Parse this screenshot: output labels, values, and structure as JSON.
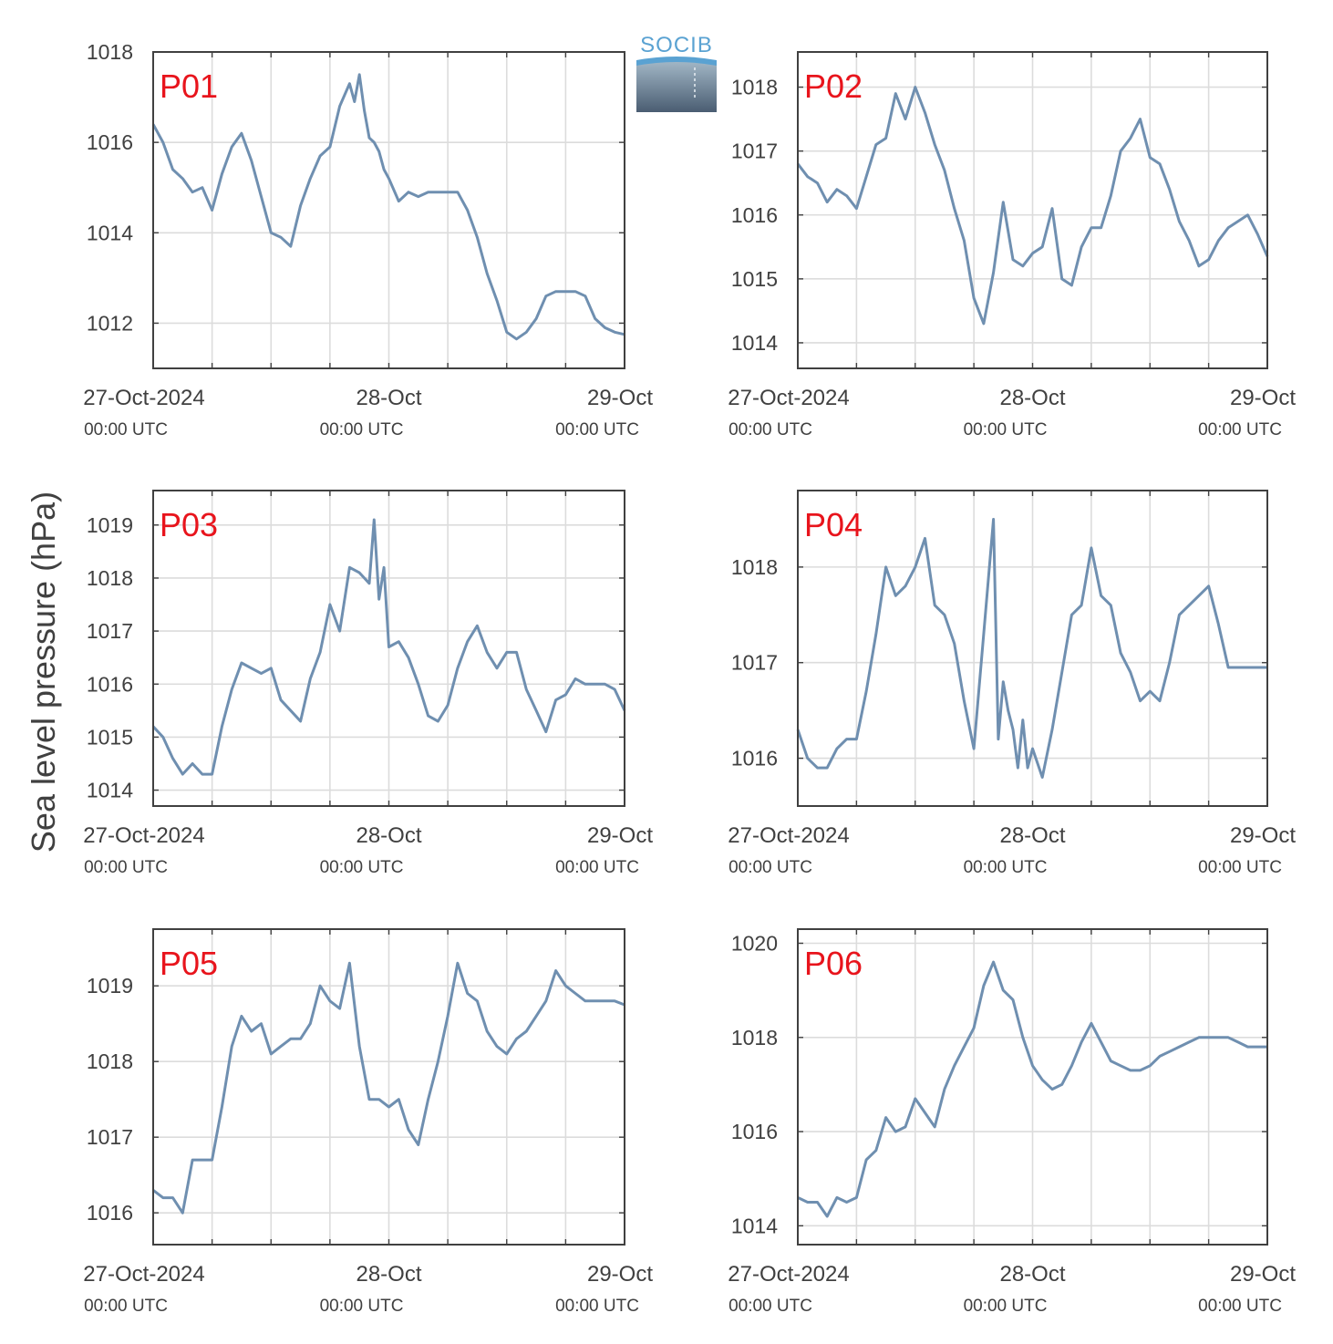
{
  "figure": {
    "ylabel": "Sea level pressure (hPa)",
    "logo_text": "SOCIB",
    "line_color": "#6f8fb0",
    "station_label_color": "#e8141c",
    "grid_color": "#dcdcdc",
    "axis_color": "#404040"
  },
  "chart_data": [
    {
      "type": "line",
      "name": "P01",
      "x_ticks": [
        0,
        24,
        48
      ],
      "x_tick_labels": [
        "27-Oct-2024",
        "28-Oct",
        "29-Oct"
      ],
      "x_tick_sublabels": [
        "00:00 UTC",
        "00:00 UTC",
        "00:00 UTC"
      ],
      "xlim": [
        0,
        48
      ],
      "ylim": [
        1011.0,
        1018.0
      ],
      "y_ticks": [
        1012,
        1014,
        1016,
        1018
      ],
      "grid": true,
      "x": [
        0,
        1,
        2,
        3,
        4,
        5,
        6,
        7,
        8,
        9,
        10,
        11,
        12,
        13,
        14,
        15,
        16,
        17,
        18,
        19,
        20,
        20.5,
        21,
        21.5,
        22,
        22.5,
        23,
        23.5,
        24,
        25,
        26,
        27,
        28,
        29,
        30,
        31,
        32,
        33,
        34,
        35,
        36,
        37,
        38,
        39,
        40,
        41,
        42,
        43,
        44,
        45,
        46,
        47,
        48
      ],
      "y": [
        1016.4,
        1016.0,
        1015.4,
        1015.2,
        1014.9,
        1015.0,
        1014.5,
        1015.3,
        1015.9,
        1016.2,
        1015.6,
        1014.8,
        1014.0,
        1013.9,
        1013.7,
        1014.6,
        1015.2,
        1015.7,
        1015.9,
        1016.8,
        1017.3,
        1016.9,
        1017.5,
        1016.7,
        1016.1,
        1016.0,
        1015.8,
        1015.4,
        1015.2,
        1014.7,
        1014.9,
        1014.8,
        1014.9,
        1014.9,
        1014.9,
        1014.9,
        1014.5,
        1013.9,
        1013.1,
        1012.5,
        1011.8,
        1011.65,
        1011.8,
        1012.1,
        1012.6,
        1012.7,
        1012.7,
        1012.7,
        1012.6,
        1012.1,
        1011.9,
        1011.8,
        1011.75
      ]
    },
    {
      "type": "line",
      "name": "P02",
      "x_ticks": [
        0,
        24,
        48
      ],
      "x_tick_labels": [
        "27-Oct-2024",
        "28-Oct",
        "29-Oct"
      ],
      "x_tick_sublabels": [
        "00:00 UTC",
        "00:00 UTC",
        "00:00 UTC"
      ],
      "xlim": [
        0,
        48
      ],
      "ylim": [
        1013.6,
        1018.55
      ],
      "y_ticks": [
        1014,
        1015,
        1016,
        1017,
        1018
      ],
      "grid": true,
      "x": [
        0,
        1,
        2,
        3,
        4,
        5,
        6,
        7,
        8,
        9,
        10,
        11,
        12,
        13,
        14,
        15,
        16,
        17,
        18,
        19,
        20,
        21,
        22,
        23,
        24,
        25,
        26,
        27,
        28,
        29,
        30,
        31,
        32,
        33,
        34,
        35,
        36,
        37,
        38,
        39,
        40,
        41,
        42,
        43,
        44,
        45,
        46,
        47,
        48
      ],
      "y": [
        1016.8,
        1016.6,
        1016.5,
        1016.2,
        1016.4,
        1016.3,
        1016.1,
        1016.6,
        1017.1,
        1017.2,
        1017.9,
        1017.5,
        1018.0,
        1017.6,
        1017.1,
        1016.7,
        1016.1,
        1015.6,
        1014.7,
        1014.3,
        1015.1,
        1016.2,
        1015.3,
        1015.2,
        1015.4,
        1015.5,
        1016.1,
        1015.0,
        1014.9,
        1015.5,
        1015.8,
        1015.8,
        1016.3,
        1017.0,
        1017.2,
        1017.5,
        1016.9,
        1016.8,
        1016.4,
        1015.9,
        1015.6,
        1015.2,
        1015.3,
        1015.6,
        1015.8,
        1015.9,
        1016.0,
        1015.7,
        1015.35
      ]
    },
    {
      "type": "line",
      "name": "P03",
      "x_ticks": [
        0,
        24,
        48
      ],
      "x_tick_labels": [
        "27-Oct-2024",
        "28-Oct",
        "29-Oct"
      ],
      "x_tick_sublabels": [
        "00:00 UTC",
        "00:00 UTC",
        "00:00 UTC"
      ],
      "xlim": [
        0,
        48
      ],
      "ylim": [
        1013.7,
        1019.65
      ],
      "y_ticks": [
        1014,
        1015,
        1016,
        1017,
        1018,
        1019
      ],
      "grid": true,
      "x": [
        0,
        1,
        2,
        3,
        4,
        5,
        6,
        7,
        8,
        9,
        10,
        11,
        12,
        13,
        14,
        15,
        16,
        17,
        18,
        19,
        20,
        21,
        22,
        22.5,
        23,
        23.5,
        24,
        25,
        26,
        27,
        28,
        29,
        30,
        31,
        32,
        33,
        34,
        35,
        36,
        37,
        38,
        39,
        40,
        41,
        42,
        43,
        44,
        45,
        46,
        47,
        48
      ],
      "y": [
        1015.2,
        1015.0,
        1014.6,
        1014.3,
        1014.5,
        1014.3,
        1014.3,
        1015.2,
        1015.9,
        1016.4,
        1016.3,
        1016.2,
        1016.3,
        1015.7,
        1015.5,
        1015.3,
        1016.1,
        1016.6,
        1017.5,
        1017.0,
        1018.2,
        1018.1,
        1017.9,
        1019.1,
        1017.6,
        1018.2,
        1016.7,
        1016.8,
        1016.5,
        1016.0,
        1015.4,
        1015.3,
        1015.6,
        1016.3,
        1016.8,
        1017.1,
        1016.6,
        1016.3,
        1016.6,
        1016.6,
        1015.9,
        1015.5,
        1015.1,
        1015.7,
        1015.8,
        1016.1,
        1016.0,
        1016.0,
        1016.0,
        1015.9,
        1015.5
      ]
    },
    {
      "type": "line",
      "name": "P04",
      "x_ticks": [
        0,
        24,
        48
      ],
      "x_tick_labels": [
        "27-Oct-2024",
        "28-Oct",
        "29-Oct"
      ],
      "x_tick_sublabels": [
        "00:00 UTC",
        "00:00 UTC",
        "00:00 UTC"
      ],
      "xlim": [
        0,
        48
      ],
      "ylim": [
        1015.5,
        1018.8
      ],
      "y_ticks": [
        1016,
        1017,
        1018
      ],
      "grid": true,
      "x": [
        0,
        1,
        2,
        3,
        4,
        5,
        6,
        7,
        8,
        9,
        10,
        11,
        12,
        13,
        14,
        15,
        16,
        17,
        18,
        19,
        20,
        20.5,
        21,
        21.5,
        22,
        22.5,
        23,
        23.5,
        24,
        25,
        26,
        27,
        28,
        29,
        30,
        31,
        32,
        33,
        34,
        35,
        36,
        37,
        38,
        39,
        40,
        41,
        42,
        43,
        44,
        45,
        46,
        47,
        48
      ],
      "y": [
        1016.3,
        1016.0,
        1015.9,
        1015.9,
        1016.1,
        1016.2,
        1016.2,
        1016.7,
        1017.3,
        1018.0,
        1017.7,
        1017.8,
        1018.0,
        1018.3,
        1017.6,
        1017.5,
        1017.2,
        1016.6,
        1016.1,
        1017.3,
        1018.5,
        1016.2,
        1016.8,
        1016.5,
        1016.3,
        1015.9,
        1016.4,
        1015.9,
        1016.1,
        1015.8,
        1016.3,
        1016.9,
        1017.5,
        1017.6,
        1018.2,
        1017.7,
        1017.6,
        1017.1,
        1016.9,
        1016.6,
        1016.7,
        1016.6,
        1017.0,
        1017.5,
        1017.6,
        1017.7,
        1017.8,
        1017.4,
        1016.95,
        1016.95,
        1016.95,
        1016.95,
        1016.95
      ]
    },
    {
      "type": "line",
      "name": "P05",
      "x_ticks": [
        0,
        24,
        48
      ],
      "x_tick_labels": [
        "27-Oct-2024",
        "28-Oct",
        "29-Oct"
      ],
      "x_tick_sublabels": [
        "00:00 UTC",
        "00:00 UTC",
        "00:00 UTC"
      ],
      "xlim": [
        0,
        48
      ],
      "ylim": [
        1015.58,
        1019.75
      ],
      "y_ticks": [
        1016,
        1017,
        1018,
        1019
      ],
      "grid": true,
      "x": [
        0,
        1,
        2,
        3,
        4,
        5,
        6,
        7,
        8,
        9,
        10,
        11,
        12,
        13,
        14,
        15,
        16,
        17,
        18,
        19,
        20,
        21,
        22,
        23,
        24,
        25,
        26,
        27,
        28,
        29,
        30,
        31,
        32,
        33,
        34,
        35,
        36,
        37,
        38,
        39,
        40,
        41,
        42,
        43,
        44,
        45,
        46,
        47,
        48
      ],
      "y": [
        1016.3,
        1016.2,
        1016.2,
        1016.0,
        1016.7,
        1016.7,
        1016.7,
        1017.4,
        1018.2,
        1018.6,
        1018.4,
        1018.5,
        1018.1,
        1018.2,
        1018.3,
        1018.3,
        1018.5,
        1019.0,
        1018.8,
        1018.7,
        1019.3,
        1018.2,
        1017.5,
        1017.5,
        1017.4,
        1017.5,
        1017.1,
        1016.9,
        1017.5,
        1018.0,
        1018.6,
        1019.3,
        1018.9,
        1018.8,
        1018.4,
        1018.2,
        1018.1,
        1018.3,
        1018.4,
        1018.6,
        1018.8,
        1019.2,
        1019.0,
        1018.9,
        1018.8,
        1018.8,
        1018.8,
        1018.8,
        1018.75
      ]
    },
    {
      "type": "line",
      "name": "P06",
      "x_ticks": [
        0,
        24,
        48
      ],
      "x_tick_labels": [
        "27-Oct-2024",
        "28-Oct",
        "29-Oct"
      ],
      "x_tick_sublabels": [
        "00:00 UTC",
        "00:00 UTC",
        "00:00 UTC"
      ],
      "xlim": [
        0,
        48
      ],
      "ylim": [
        1013.6,
        1020.3
      ],
      "y_ticks": [
        1014,
        1016,
        1018,
        1020
      ],
      "grid": true,
      "x": [
        0,
        1,
        2,
        3,
        4,
        5,
        6,
        7,
        8,
        9,
        10,
        11,
        12,
        13,
        14,
        15,
        16,
        17,
        18,
        19,
        20,
        21,
        22,
        23,
        24,
        25,
        26,
        27,
        28,
        29,
        30,
        31,
        32,
        33,
        34,
        35,
        36,
        37,
        38,
        39,
        40,
        41,
        42,
        43,
        44,
        45,
        46,
        47,
        48
      ],
      "y": [
        1014.6,
        1014.5,
        1014.5,
        1014.2,
        1014.6,
        1014.5,
        1014.6,
        1015.4,
        1015.6,
        1016.3,
        1016.0,
        1016.1,
        1016.7,
        1016.4,
        1016.1,
        1016.9,
        1017.4,
        1017.8,
        1018.2,
        1019.1,
        1019.6,
        1019.0,
        1018.8,
        1018.0,
        1017.4,
        1017.1,
        1016.9,
        1017.0,
        1017.4,
        1017.9,
        1018.3,
        1017.9,
        1017.5,
        1017.4,
        1017.3,
        1017.3,
        1017.4,
        1017.6,
        1017.7,
        1017.8,
        1017.9,
        1018.0,
        1018.0,
        1018.0,
        1018.0,
        1017.9,
        1017.8,
        1017.8,
        1017.8
      ]
    }
  ]
}
